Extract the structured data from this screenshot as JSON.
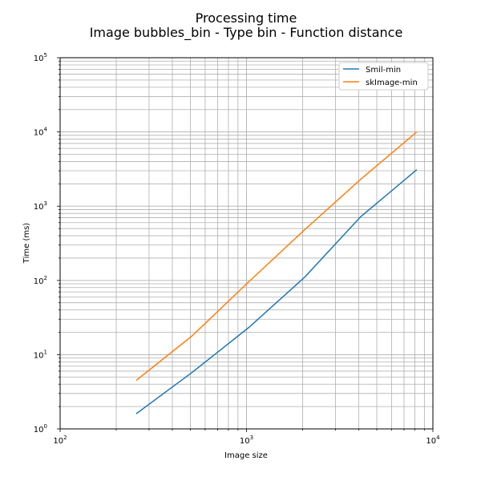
{
  "chart_data": {
    "type": "line",
    "title": "Processing time",
    "subtitle": "Image bubbles_bin - Type bin - Function distance",
    "xlabel": "Image size",
    "ylabel": "Time (ms)",
    "xscale": "log",
    "yscale": "log",
    "xlim": [
      100,
      10000
    ],
    "ylim": [
      1,
      100000
    ],
    "grid": "both major and minor",
    "legend_position": "top-right",
    "x": [
      256,
      512,
      1024,
      2048,
      4096,
      8192
    ],
    "series": [
      {
        "name": "Smil-min",
        "color": "#1f77b4",
        "values": [
          1.6,
          5.8,
          23,
          110,
          720,
          3100
        ]
      },
      {
        "name": "skImage-min",
        "color": "#ff7f0e",
        "values": [
          4.5,
          18,
          95,
          480,
          2300,
          10000
        ]
      }
    ],
    "x_ticks": [
      {
        "base": "10",
        "exp": "2",
        "value": 100
      },
      {
        "base": "10",
        "exp": "3",
        "value": 1000
      },
      {
        "base": "10",
        "exp": "4",
        "value": 10000
      }
    ],
    "y_ticks": [
      {
        "base": "10",
        "exp": "0",
        "value": 1
      },
      {
        "base": "10",
        "exp": "1",
        "value": 10
      },
      {
        "base": "10",
        "exp": "2",
        "value": 100
      },
      {
        "base": "10",
        "exp": "3",
        "value": 1000
      },
      {
        "base": "10",
        "exp": "4",
        "value": 10000
      },
      {
        "base": "10",
        "exp": "5",
        "value": 100000
      }
    ]
  }
}
